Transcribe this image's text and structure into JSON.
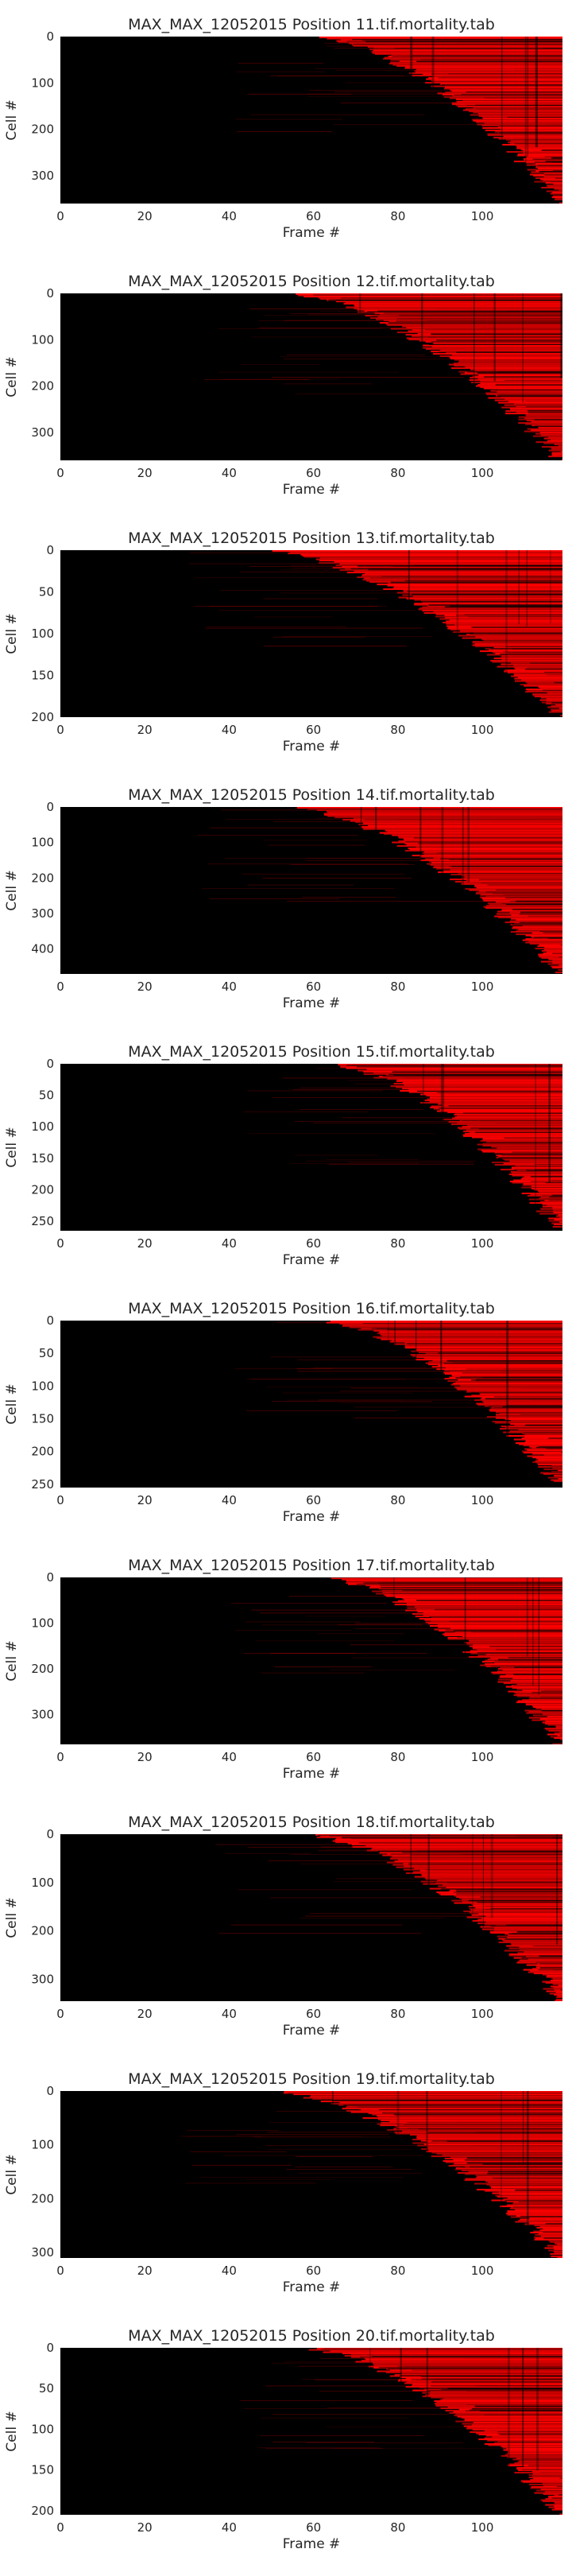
{
  "chart_data": [
    {
      "type": "heatmap",
      "title": "MAX_MAX_12052015 Position 11.tif.mortality.tab",
      "xlabel": "Frame #",
      "ylabel": "Cell #",
      "xlim": [
        0,
        119
      ],
      "ylim": [
        0,
        360
      ],
      "xticks": [
        0,
        20,
        40,
        60,
        80,
        100
      ],
      "yticks": [
        0,
        100,
        200,
        300
      ],
      "onset_start": 58,
      "onset_end": 119,
      "colormap": [
        "#000000",
        "#ff0000"
      ],
      "grid": false
    },
    {
      "type": "heatmap",
      "title": "MAX_MAX_12052015 Position 12.tif.mortality.tab",
      "xlabel": "Frame #",
      "ylabel": "Cell #",
      "xlim": [
        0,
        119
      ],
      "ylim": [
        0,
        360
      ],
      "xticks": [
        0,
        20,
        40,
        60,
        80,
        100
      ],
      "yticks": [
        0,
        100,
        200,
        300
      ],
      "onset_start": 52,
      "onset_end": 119,
      "colormap": [
        "#000000",
        "#ff0000"
      ],
      "grid": false
    },
    {
      "type": "heatmap",
      "title": "MAX_MAX_12052015 Position 13.tif.mortality.tab",
      "xlabel": "Frame #",
      "ylabel": "Cell #",
      "xlim": [
        0,
        119
      ],
      "ylim": [
        0,
        200
      ],
      "xticks": [
        0,
        20,
        40,
        60,
        80,
        100
      ],
      "yticks": [
        0,
        50,
        100,
        150,
        200
      ],
      "onset_start": 46,
      "onset_end": 119,
      "colormap": [
        "#000000",
        "#ff0000"
      ],
      "grid": false
    },
    {
      "type": "heatmap",
      "title": "MAX_MAX_12052015 Position 14.tif.mortality.tab",
      "xlabel": "Frame #",
      "ylabel": "Cell #",
      "xlim": [
        0,
        119
      ],
      "ylim": [
        0,
        470
      ],
      "xticks": [
        0,
        20,
        40,
        60,
        80,
        100
      ],
      "yticks": [
        0,
        100,
        200,
        300,
        400
      ],
      "onset_start": 52,
      "onset_end": 119,
      "colormap": [
        "#000000",
        "#ff0000"
      ],
      "grid": false
    },
    {
      "type": "heatmap",
      "title": "MAX_MAX_12052015 Position 15.tif.mortality.tab",
      "xlabel": "Frame #",
      "ylabel": "Cell #",
      "xlim": [
        0,
        119
      ],
      "ylim": [
        0,
        265
      ],
      "xticks": [
        0,
        20,
        40,
        60,
        80,
        100
      ],
      "yticks": [
        0,
        50,
        100,
        150,
        200,
        250
      ],
      "onset_start": 62,
      "onset_end": 119,
      "colormap": [
        "#000000",
        "#ff0000"
      ],
      "grid": false
    },
    {
      "type": "heatmap",
      "title": "MAX_MAX_12052015 Position 16.tif.mortality.tab",
      "xlabel": "Frame #",
      "ylabel": "Cell #",
      "xlim": [
        0,
        119
      ],
      "ylim": [
        0,
        255
      ],
      "xticks": [
        0,
        20,
        40,
        60,
        80,
        100
      ],
      "yticks": [
        0,
        50,
        100,
        150,
        200,
        250
      ],
      "onset_start": 60,
      "onset_end": 119,
      "colormap": [
        "#000000",
        "#ff0000"
      ],
      "grid": false
    },
    {
      "type": "heatmap",
      "title": "MAX_MAX_12052015 Position 17.tif.mortality.tab",
      "xlabel": "Frame #",
      "ylabel": "Cell #",
      "xlim": [
        0,
        119
      ],
      "ylim": [
        0,
        365
      ],
      "xticks": [
        0,
        20,
        40,
        60,
        80,
        100
      ],
      "yticks": [
        0,
        100,
        200,
        300
      ],
      "onset_start": 60,
      "onset_end": 119,
      "colormap": [
        "#000000",
        "#ff0000"
      ],
      "grid": false
    },
    {
      "type": "heatmap",
      "title": "MAX_MAX_12052015 Position 18.tif.mortality.tab",
      "xlabel": "Frame #",
      "ylabel": "Cell #",
      "xlim": [
        0,
        119
      ],
      "ylim": [
        0,
        345
      ],
      "xticks": [
        0,
        20,
        40,
        60,
        80,
        100
      ],
      "yticks": [
        0,
        100,
        200,
        300
      ],
      "onset_start": 56,
      "onset_end": 119,
      "colormap": [
        "#000000",
        "#ff0000"
      ],
      "grid": false
    },
    {
      "type": "heatmap",
      "title": "MAX_MAX_12052015 Position 19.tif.mortality.tab",
      "xlabel": "Frame #",
      "ylabel": "Cell #",
      "xlim": [
        0,
        119
      ],
      "ylim": [
        0,
        310
      ],
      "xticks": [
        0,
        20,
        40,
        60,
        80,
        100
      ],
      "yticks": [
        0,
        100,
        200,
        300
      ],
      "onset_start": 48,
      "onset_end": 119,
      "colormap": [
        "#000000",
        "#ff0000"
      ],
      "grid": false
    },
    {
      "type": "heatmap",
      "title": "MAX_MAX_12052015 Position 20.tif.mortality.tab",
      "xlabel": "Frame #",
      "ylabel": "Cell #",
      "xlim": [
        0,
        119
      ],
      "ylim": [
        0,
        205
      ],
      "xticks": [
        0,
        20,
        40,
        60,
        80,
        100
      ],
      "yticks": [
        0,
        50,
        100,
        150,
        200
      ],
      "onset_start": 56,
      "onset_end": 119,
      "colormap": [
        "#000000",
        "#ff0000"
      ],
      "grid": false
    }
  ]
}
